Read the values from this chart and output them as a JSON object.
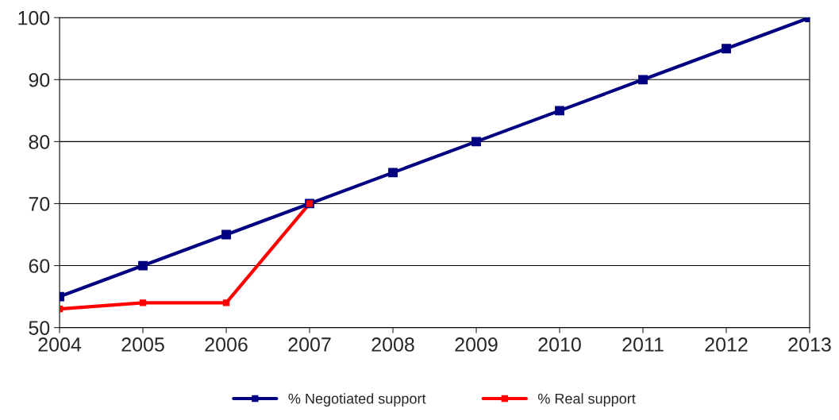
{
  "chart_data": {
    "type": "line",
    "x": [
      2004,
      2005,
      2006,
      2007,
      2008,
      2009,
      2010,
      2011,
      2012,
      2013
    ],
    "series": [
      {
        "name": "% Negotiated support",
        "color": "#000080",
        "values": [
          55,
          60,
          65,
          70,
          75,
          80,
          85,
          90,
          95,
          100
        ]
      },
      {
        "name": "% Real support",
        "color": "#ff0000",
        "values": [
          53,
          54,
          54,
          70,
          null,
          null,
          null,
          null,
          null,
          null
        ]
      }
    ],
    "xlim": [
      2004,
      2013
    ],
    "xticks": [
      2004,
      2005,
      2006,
      2007,
      2008,
      2009,
      2010,
      2011,
      2012,
      2013
    ],
    "ylim": [
      50,
      100
    ],
    "yticks": [
      50,
      60,
      70,
      80,
      90,
      100
    ],
    "grid": "y",
    "legend": "bottom",
    "marker": "square",
    "line_style": "solid"
  }
}
